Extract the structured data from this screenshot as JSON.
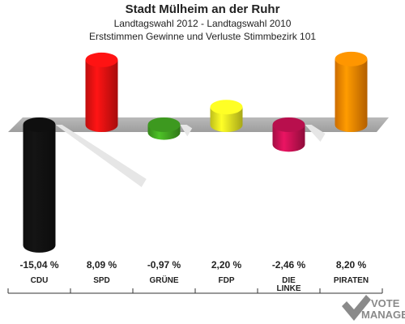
{
  "title": "Stadt Mülheim an der Ruhr",
  "subtitle": "Landtagswahl 2012 - Landtagswahl 2010",
  "subsubtitle": "Erststimmen Gewinne und Verluste Stimmbezirk 101",
  "chart_data": {
    "type": "bar",
    "categories": [
      "CDU",
      "SPD",
      "GRÜNE",
      "FDP",
      "DIE LINKE",
      "PIRATEN"
    ],
    "values": [
      -15.04,
      8.09,
      -0.97,
      2.2,
      -2.46,
      8.2
    ],
    "value_labels": [
      "-15,04 %",
      "8,09 %",
      "-0,97 %",
      "2,20 %",
      "-2,46 %",
      "8,20 %"
    ],
    "colors": [
      "#111111",
      "#ee1111",
      "#44aa22",
      "#eeee22",
      "#cc1155",
      "#ff8800"
    ],
    "ylim": [
      -16,
      10
    ],
    "grid": false,
    "legend": "none"
  },
  "logo": {
    "line1": "VOTE",
    "line2": "MANAGER"
  }
}
